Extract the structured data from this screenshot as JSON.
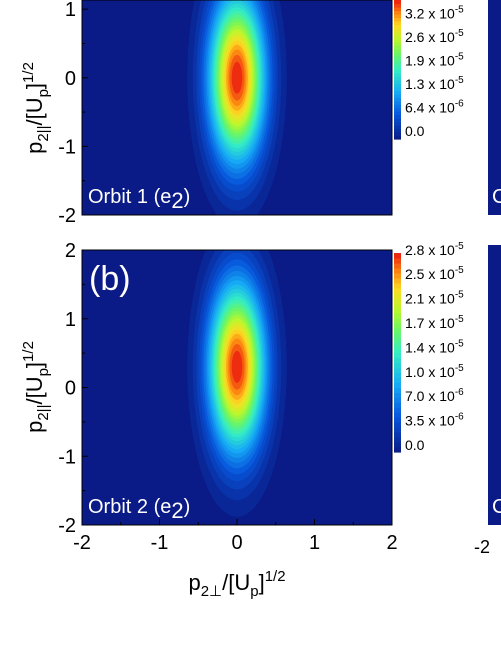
{
  "chart_data": [
    {
      "type": "heatmap",
      "panel_label": "",
      "annotation": "Orbit 1 (e2)",
      "annotation_main": "Orbit 1 (e",
      "annotation_sub": "2",
      "annotation_close": ")",
      "xlabel": "",
      "ylabel": "p2||/[Up]1/2",
      "ylabel_parts": [
        "p",
        "2||",
        "/[U",
        "p",
        "]",
        "1/2"
      ],
      "xlim": [
        -2,
        2
      ],
      "ylim": [
        -2,
        2
      ],
      "y_ticks": [
        "-2",
        "-1",
        "0",
        "1"
      ],
      "colorbar_ticks": [
        "0.0",
        "6.4 x 10",
        "1.3 x 10",
        "1.9 x 10",
        "2.6 x 10",
        "3.2 x 10"
      ],
      "colorbar_exps": [
        "",
        "-6",
        "-5",
        "-5",
        "-5",
        "-5"
      ],
      "colorbar_values": [
        0.0,
        6.4e-06,
        1.3e-05,
        1.9e-05,
        2.6e-05,
        3.2e-05
      ],
      "vmax": 3.6e-05,
      "peak": {
        "x": 0.0,
        "y": 0.0,
        "value": 3.6e-05
      },
      "width": {
        "sx": 0.25,
        "sy": 0.85
      },
      "background": "#0a1a86"
    },
    {
      "type": "heatmap",
      "panel_label": "(b)",
      "annotation": "Orbit 2 (e2)",
      "annotation_main": "Orbit 2 (e",
      "annotation_sub": "2",
      "annotation_close": ")",
      "xlabel": "p2⊥/[Up]1/2",
      "xlabel_parts": [
        "p",
        "2⊥",
        "/[U",
        "p",
        "]",
        "1/2"
      ],
      "ylabel": "p2||/[Up]1/2",
      "ylabel_parts": [
        "p",
        "2||",
        "/[U",
        "p",
        "]",
        "1/2"
      ],
      "xlim": [
        -2,
        2
      ],
      "ylim": [
        -2,
        2
      ],
      "x_ticks": [
        "-2",
        "-1",
        "0",
        "1",
        "2"
      ],
      "y_ticks": [
        "-2",
        "-1",
        "0",
        "1",
        "2"
      ],
      "colorbar_ticks": [
        "0.0",
        "3.5 x 10",
        "7.0 x 10",
        "1.0 x 10",
        "1.4 x 10",
        "1.7 x 10",
        "2.1 x 10",
        "2.5 x 10",
        "2.8 x 10"
      ],
      "colorbar_exps": [
        "",
        "-6",
        "-6",
        "-5",
        "-5",
        "-5",
        "-5",
        "-5",
        "-5"
      ],
      "colorbar_values": [
        0.0,
        3.5e-06,
        7e-06,
        1e-05,
        1.4e-05,
        1.7e-05,
        2.1e-05,
        2.5e-05,
        2.8e-05
      ],
      "vmax": 2.8e-05,
      "peak": {
        "x": 0.0,
        "y": 0.3,
        "value": 2.8e-05
      },
      "width": {
        "sx": 0.25,
        "sy": 0.85
      },
      "background": "#0a1a86"
    }
  ],
  "partial_right": {
    "labels": [
      "C",
      "C",
      "-2"
    ]
  }
}
